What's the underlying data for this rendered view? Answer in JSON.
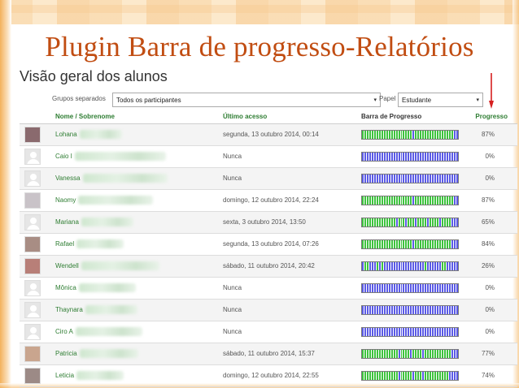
{
  "slide": {
    "title": "Plugin Barra de progresso-Relatórios"
  },
  "page": {
    "heading": "Visão geral dos alunos"
  },
  "filters": {
    "group_label": "Grupos separados",
    "group_value": "Todos os participantes",
    "role_label": "Papel",
    "role_value": "Estudante"
  },
  "table": {
    "headers": {
      "name": "Nome / Sobrenome",
      "last_access": "Último acesso",
      "progress_bar": "Barra de Progresso",
      "progress": "Progresso"
    },
    "rows": [
      {
        "first_name": "Lohana",
        "last_access": "segunda, 13 outubro 2014, 00:14",
        "progress": "87%",
        "photo": "#8a6a6e",
        "blur": 52,
        "bar": [
          1,
          1,
          1,
          1,
          1,
          1,
          1,
          1,
          1,
          1,
          1,
          1,
          1,
          1,
          1,
          1,
          1,
          1,
          1,
          1,
          1,
          0,
          1,
          1,
          1,
          1,
          1,
          1,
          1,
          1,
          1,
          1,
          1,
          1,
          1,
          1,
          1,
          1,
          0,
          0
        ]
      },
      {
        "first_name": "Caio I",
        "last_access": "Nunca",
        "progress": "0%",
        "photo": "",
        "blur": 112,
        "bar": [
          0,
          0,
          0,
          0,
          0,
          0,
          0,
          0,
          0,
          0,
          0,
          0,
          0,
          0,
          0,
          0,
          0,
          0,
          0,
          0,
          0,
          0,
          0,
          0,
          0,
          0,
          0,
          0,
          0,
          0,
          0,
          0,
          0,
          0,
          0,
          0,
          0,
          0,
          0,
          0
        ]
      },
      {
        "first_name": "Vanessa",
        "last_access": "Nunca",
        "progress": "0%",
        "photo": "",
        "blur": 104,
        "bar": [
          0,
          0,
          0,
          0,
          0,
          0,
          0,
          0,
          0,
          0,
          0,
          0,
          0,
          0,
          0,
          0,
          0,
          0,
          0,
          0,
          0,
          0,
          0,
          0,
          0,
          0,
          0,
          0,
          0,
          0,
          0,
          0,
          0,
          0,
          0,
          0,
          0,
          0,
          0,
          0
        ]
      },
      {
        "first_name": "Naomy",
        "last_access": "domingo, 12 outubro 2014, 22:24",
        "progress": "87%",
        "photo": "#c9c3c8",
        "blur": 92,
        "bar": [
          1,
          1,
          1,
          1,
          1,
          1,
          1,
          1,
          1,
          1,
          1,
          1,
          1,
          1,
          1,
          1,
          1,
          1,
          1,
          1,
          1,
          0,
          1,
          1,
          1,
          1,
          1,
          1,
          1,
          1,
          1,
          1,
          1,
          1,
          1,
          1,
          1,
          1,
          0,
          0
        ]
      },
      {
        "first_name": "Mariana",
        "last_access": "sexta, 3 outubro 2014, 13:50",
        "progress": "65%",
        "photo": "",
        "blur": 64,
        "bar": [
          1,
          1,
          1,
          1,
          1,
          1,
          1,
          1,
          1,
          1,
          1,
          1,
          1,
          1,
          0,
          1,
          1,
          1,
          0,
          1,
          1,
          1,
          0,
          1,
          1,
          1,
          1,
          0,
          1,
          1,
          1,
          1,
          0,
          1,
          1,
          1,
          1,
          0,
          0,
          0
        ]
      },
      {
        "first_name": "Rafael",
        "last_access": "segunda, 13 outubro 2014, 07:26",
        "progress": "84%",
        "photo": "#a88d84",
        "blur": 58,
        "bar": [
          1,
          1,
          1,
          1,
          1,
          1,
          1,
          1,
          1,
          1,
          1,
          1,
          1,
          1,
          1,
          1,
          1,
          1,
          1,
          1,
          1,
          0,
          1,
          1,
          1,
          1,
          1,
          1,
          1,
          1,
          1,
          1,
          1,
          1,
          1,
          1,
          1,
          0,
          0,
          0
        ]
      },
      {
        "first_name": "Wendell",
        "last_access": "sábado, 11 outubro 2014, 20:42",
        "progress": "26%",
        "photo": "#b87f78",
        "blur": 96,
        "bar": [
          0,
          1,
          1,
          0,
          0,
          0,
          1,
          0,
          1,
          0,
          0,
          0,
          0,
          0,
          0,
          0,
          0,
          0,
          0,
          0,
          0,
          0,
          0,
          0,
          0,
          0,
          1,
          0,
          0,
          0,
          0,
          0,
          0,
          1,
          1,
          0,
          0,
          0,
          0,
          0
        ]
      },
      {
        "first_name": "Mônica",
        "last_access": "Nunca",
        "progress": "0%",
        "photo": "",
        "blur": 70,
        "bar": [
          0,
          0,
          0,
          0,
          0,
          0,
          0,
          0,
          0,
          0,
          0,
          0,
          0,
          0,
          0,
          0,
          0,
          0,
          0,
          0,
          0,
          0,
          0,
          0,
          0,
          0,
          0,
          0,
          0,
          0,
          0,
          0,
          0,
          0,
          0,
          0,
          0,
          0,
          0,
          0
        ]
      },
      {
        "first_name": "Thaynara",
        "last_access": "Nunca",
        "progress": "0%",
        "photo": "",
        "blur": 64,
        "bar": [
          0,
          0,
          0,
          0,
          0,
          0,
          0,
          0,
          0,
          0,
          0,
          0,
          0,
          0,
          0,
          0,
          0,
          0,
          0,
          0,
          0,
          0,
          0,
          0,
          0,
          0,
          0,
          0,
          0,
          0,
          0,
          0,
          0,
          0,
          0,
          0,
          0,
          0,
          0,
          0
        ]
      },
      {
        "first_name": "Ciro A",
        "last_access": "Nunca",
        "progress": "0%",
        "photo": "",
        "blur": 82,
        "bar": [
          0,
          0,
          0,
          0,
          0,
          0,
          0,
          0,
          0,
          0,
          0,
          0,
          0,
          0,
          0,
          0,
          0,
          0,
          0,
          0,
          0,
          0,
          0,
          0,
          0,
          0,
          0,
          0,
          0,
          0,
          0,
          0,
          0,
          0,
          0,
          0,
          0,
          0,
          0,
          0
        ]
      },
      {
        "first_name": "Patricia",
        "last_access": "sábado, 11 outubro 2014, 15:37",
        "progress": "77%",
        "photo": "#c9a58e",
        "blur": 72,
        "bar": [
          1,
          1,
          1,
          1,
          1,
          1,
          1,
          1,
          1,
          1,
          1,
          1,
          1,
          1,
          1,
          0,
          1,
          1,
          1,
          1,
          0,
          1,
          1,
          1,
          1,
          0,
          1,
          1,
          1,
          1,
          1,
          1,
          1,
          1,
          1,
          1,
          1,
          0,
          0,
          0
        ]
      },
      {
        "first_name": "Leticia",
        "last_access": "domingo, 12 outubro 2014, 22:55",
        "progress": "74%",
        "photo": "#9c8a86",
        "blur": 58,
        "bar": [
          1,
          1,
          1,
          1,
          1,
          1,
          1,
          1,
          1,
          1,
          1,
          1,
          1,
          1,
          1,
          0,
          1,
          1,
          1,
          1,
          1,
          0,
          1,
          1,
          1,
          0,
          1,
          1,
          1,
          1,
          1,
          1,
          1,
          1,
          1,
          1,
          0,
          0,
          0,
          0
        ]
      }
    ]
  },
  "colors": {
    "title": "#c14d12",
    "accent_green": "#2e7d32",
    "done": "#3ec33e",
    "todo": "#5b5be6",
    "arrow": "#d62020"
  }
}
